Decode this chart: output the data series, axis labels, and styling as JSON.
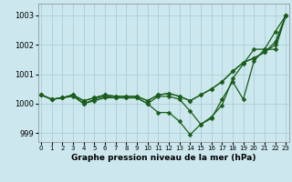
{
  "xlabel": "Graphe pression niveau de la mer (hPa)",
  "background_color": "#cce8ee",
  "grid_color": "#aacdd6",
  "line_color": "#1a5c1a",
  "x": [
    0,
    1,
    2,
    3,
    4,
    5,
    6,
    7,
    8,
    9,
    10,
    11,
    12,
    13,
    14,
    15,
    16,
    17,
    18,
    19,
    20,
    21,
    22,
    23
  ],
  "series": [
    [
      1000.3,
      1000.15,
      1000.2,
      1000.25,
      1000.0,
      1000.1,
      1000.2,
      1000.2,
      1000.2,
      1000.2,
      1000.0,
      999.7,
      999.7,
      999.4,
      998.95,
      999.3,
      999.55,
      999.95,
      1000.85,
      1001.35,
      1001.85,
      1001.85,
      1001.85,
      1003.0
    ],
    [
      1000.3,
      1000.15,
      1000.2,
      1000.3,
      1000.0,
      1000.15,
      1000.25,
      1000.2,
      1000.2,
      1000.2,
      1000.0,
      1000.25,
      1000.25,
      1000.15,
      999.75,
      999.3,
      999.5,
      1000.15,
      1000.75,
      1000.15,
      1001.45,
      1001.85,
      1002.45,
      1003.0
    ],
    [
      1000.3,
      1000.15,
      1000.2,
      1000.3,
      1000.1,
      1000.2,
      1000.3,
      1000.25,
      1000.25,
      1000.25,
      1000.1,
      1000.3,
      1000.35,
      1000.25,
      1000.1,
      1000.3,
      1000.5,
      1000.75,
      1001.1,
      1001.4,
      1001.55,
      1001.75,
      1002.0,
      1003.0
    ],
    [
      1000.3,
      1000.15,
      1000.2,
      1000.3,
      1000.1,
      1000.2,
      1000.3,
      1000.25,
      1000.25,
      1000.25,
      1000.1,
      1000.3,
      1000.35,
      1000.25,
      1000.1,
      1000.3,
      1000.5,
      1000.75,
      1001.1,
      1001.4,
      1001.55,
      1001.75,
      1002.1,
      1003.0
    ]
  ],
  "ylim": [
    998.7,
    1003.4
  ],
  "xlim": [
    -0.3,
    23.3
  ],
  "yticks": [
    999,
    1000,
    1001,
    1002,
    1003
  ],
  "xticks": [
    0,
    1,
    2,
    3,
    4,
    5,
    6,
    7,
    8,
    9,
    10,
    11,
    12,
    13,
    14,
    15,
    16,
    17,
    18,
    19,
    20,
    21,
    22,
    23
  ],
  "markersize": 2.5,
  "linewidth": 0.9
}
